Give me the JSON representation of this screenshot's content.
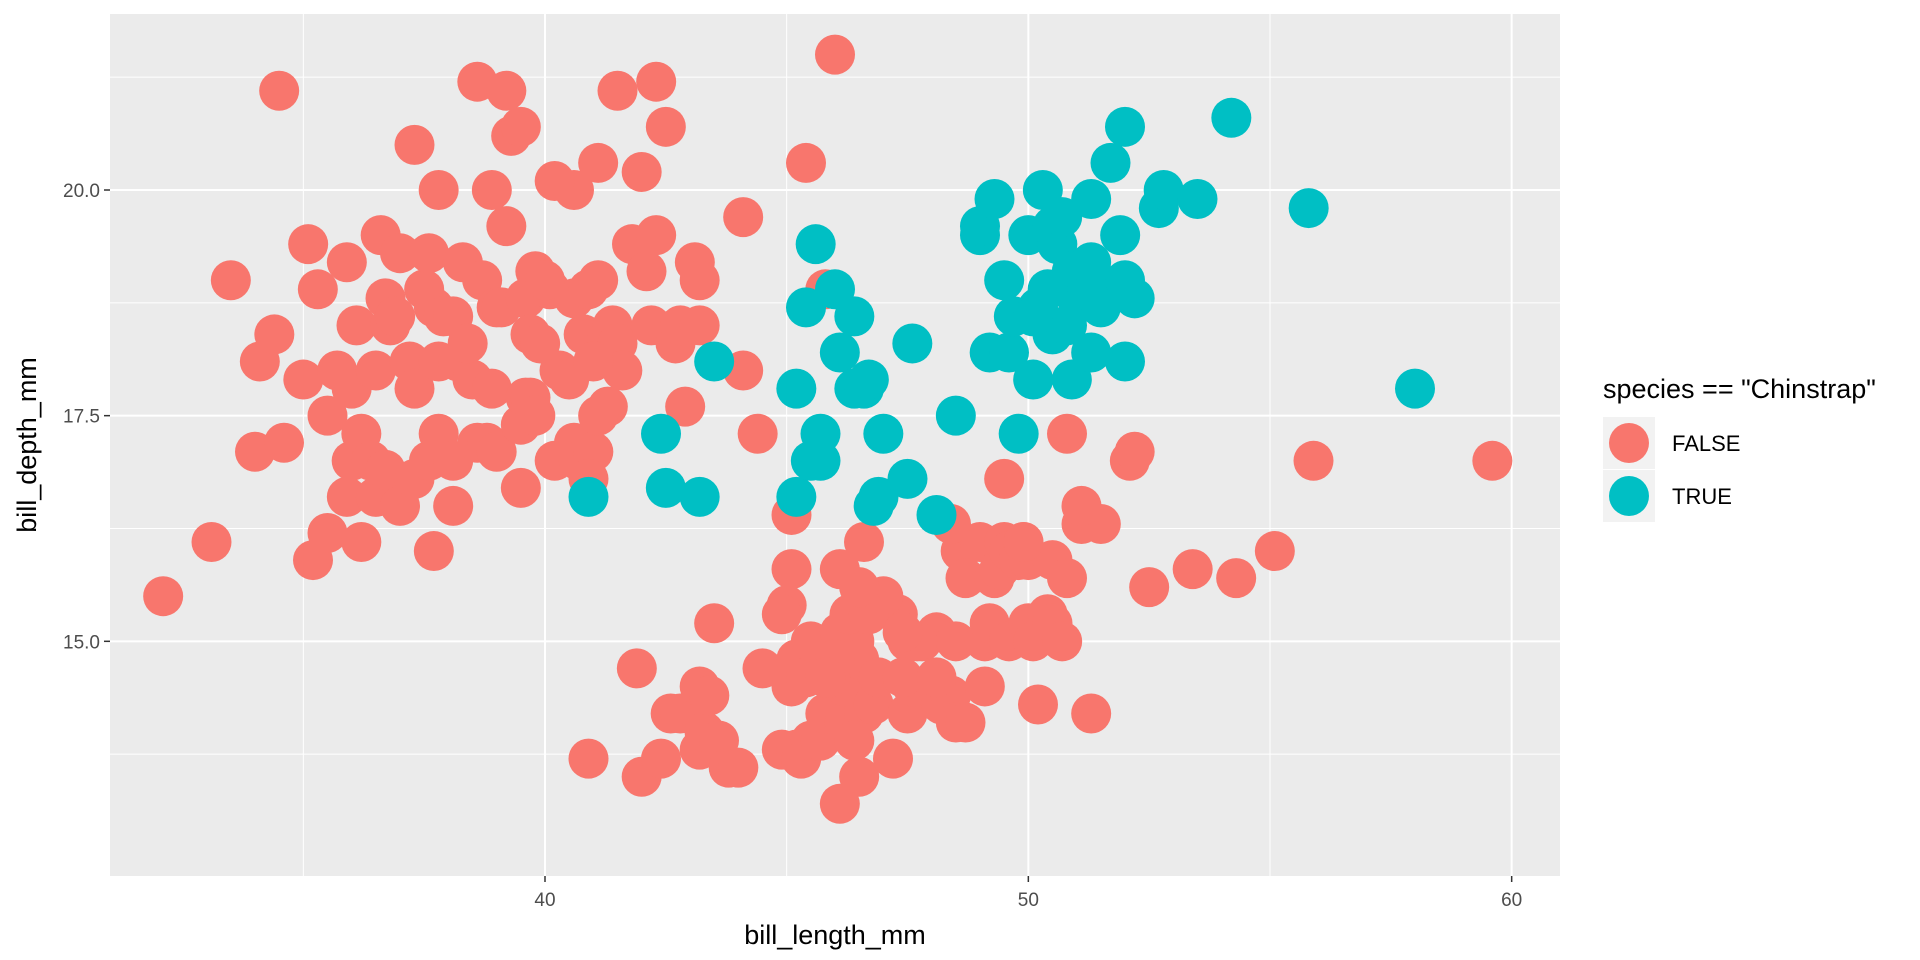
{
  "chart_data": {
    "type": "scatter",
    "xlabel": "bill_length_mm",
    "ylabel": "bill_depth_mm",
    "xlim": [
      31.0,
      61.0
    ],
    "ylim": [
      12.4,
      21.95
    ],
    "x_ticks": [
      40,
      50,
      60
    ],
    "y_ticks": [
      15.0,
      17.5,
      20.0
    ],
    "x_tick_labels": [
      "40",
      "50",
      "60"
    ],
    "y_tick_labels": [
      "15.0",
      "17.5",
      "20.0"
    ],
    "grid": true,
    "background": "#EBEBEB",
    "legend": {
      "title": "species == \"Chinstrap\"",
      "position": "right",
      "entries": [
        {
          "label": "FALSE",
          "color": "#F8766D"
        },
        {
          "label": "TRUE",
          "color": "#00BFC4"
        }
      ]
    },
    "series": [
      {
        "name": "FALSE",
        "color": "#F8766D",
        "points": [
          [
            32.1,
            15.5
          ],
          [
            33.1,
            16.1
          ],
          [
            33.5,
            19.0
          ],
          [
            34.0,
            17.1
          ],
          [
            34.1,
            18.1
          ],
          [
            34.4,
            18.4
          ],
          [
            34.5,
            21.1
          ],
          [
            34.6,
            17.2
          ],
          [
            35.0,
            17.9
          ],
          [
            35.1,
            19.4
          ],
          [
            35.2,
            15.9
          ],
          [
            35.3,
            18.9
          ],
          [
            35.5,
            16.2
          ],
          [
            35.5,
            17.5
          ],
          [
            35.7,
            18.0
          ],
          [
            35.9,
            19.2
          ],
          [
            35.9,
            16.6
          ],
          [
            36.0,
            17.0
          ],
          [
            36.0,
            17.8
          ],
          [
            36.1,
            18.5
          ],
          [
            36.2,
            16.1
          ],
          [
            36.2,
            17.3
          ],
          [
            36.4,
            17.0
          ],
          [
            36.5,
            18.0
          ],
          [
            36.5,
            16.6
          ],
          [
            36.6,
            19.5
          ],
          [
            36.7,
            18.8
          ],
          [
            36.7,
            16.9
          ],
          [
            36.8,
            18.5
          ],
          [
            36.9,
            18.6
          ],
          [
            37.0,
            16.5
          ],
          [
            37.0,
            19.3
          ],
          [
            37.2,
            18.1
          ],
          [
            37.3,
            16.8
          ],
          [
            37.3,
            17.8
          ],
          [
            37.5,
            18.9
          ],
          [
            37.6,
            19.3
          ],
          [
            37.6,
            17.0
          ],
          [
            37.7,
            16.0
          ],
          [
            37.7,
            18.7
          ],
          [
            37.8,
            17.3
          ],
          [
            37.8,
            18.1
          ],
          [
            37.8,
            20.0
          ],
          [
            37.9,
            18.6
          ],
          [
            38.1,
            17.0
          ],
          [
            38.1,
            18.6
          ],
          [
            38.1,
            16.5
          ],
          [
            38.2,
            18.1
          ],
          [
            38.3,
            19.2
          ],
          [
            38.5,
            17.9
          ],
          [
            38.6,
            17.2
          ],
          [
            38.6,
            21.2
          ],
          [
            38.7,
            19.0
          ],
          [
            38.8,
            17.2
          ],
          [
            38.9,
            17.8
          ],
          [
            39.0,
            17.1
          ],
          [
            39.0,
            18.7
          ],
          [
            39.1,
            18.7
          ],
          [
            39.2,
            19.6
          ],
          [
            39.2,
            21.1
          ],
          [
            39.3,
            20.6
          ],
          [
            39.5,
            17.4
          ],
          [
            39.5,
            16.7
          ],
          [
            39.6,
            17.7
          ],
          [
            39.6,
            18.8
          ],
          [
            39.7,
            18.4
          ],
          [
            39.7,
            17.7
          ],
          [
            39.8,
            19.1
          ],
          [
            39.8,
            17.5
          ],
          [
            40.1,
            18.9
          ],
          [
            40.2,
            17.0
          ],
          [
            40.3,
            18.0
          ],
          [
            40.5,
            17.9
          ],
          [
            40.6,
            18.8
          ],
          [
            40.6,
            17.2
          ],
          [
            40.7,
            17.0
          ],
          [
            40.8,
            18.4
          ],
          [
            40.9,
            18.9
          ],
          [
            41.0,
            17.1
          ],
          [
            41.1,
            18.2
          ],
          [
            41.1,
            19.0
          ],
          [
            41.3,
            17.6
          ],
          [
            41.4,
            18.5
          ],
          [
            41.5,
            18.3
          ],
          [
            41.6,
            18.0
          ],
          [
            41.8,
            19.4
          ],
          [
            42.0,
            20.2
          ],
          [
            42.1,
            19.1
          ],
          [
            42.2,
            18.5
          ],
          [
            42.3,
            21.2
          ],
          [
            42.5,
            20.7
          ],
          [
            42.7,
            18.3
          ],
          [
            42.8,
            18.5
          ],
          [
            43.1,
            19.2
          ],
          [
            43.2,
            19.0
          ],
          [
            43.2,
            18.5
          ],
          [
            44.1,
            19.7
          ],
          [
            44.1,
            18.0
          ],
          [
            46.0,
            21.5
          ],
          [
            45.4,
            20.3
          ],
          [
            45.8,
            18.9
          ],
          [
            40.9,
            16.8
          ],
          [
            41.1,
            17.5
          ],
          [
            41.5,
            21.1
          ],
          [
            40.6,
            20.0
          ],
          [
            38.9,
            20.0
          ],
          [
            37.3,
            20.5
          ],
          [
            41.1,
            20.3
          ],
          [
            40.2,
            20.1
          ],
          [
            39.5,
            20.7
          ],
          [
            42.9,
            17.6
          ],
          [
            44.4,
            17.3
          ],
          [
            41.0,
            18.1
          ],
          [
            39.9,
            18.3
          ],
          [
            40.0,
            19.0
          ],
          [
            38.4,
            18.3
          ],
          [
            42.3,
            19.5
          ],
          [
            40.9,
            13.7
          ],
          [
            41.9,
            14.7
          ],
          [
            42.0,
            13.5
          ],
          [
            42.4,
            13.7
          ],
          [
            42.6,
            14.2
          ],
          [
            42.8,
            14.2
          ],
          [
            43.2,
            13.8
          ],
          [
            43.2,
            14.5
          ],
          [
            43.3,
            14.0
          ],
          [
            43.4,
            14.4
          ],
          [
            43.5,
            15.2
          ],
          [
            43.6,
            13.9
          ],
          [
            43.8,
            13.6
          ],
          [
            44.0,
            13.6
          ],
          [
            44.5,
            14.7
          ],
          [
            44.9,
            13.8
          ],
          [
            45.1,
            14.5
          ],
          [
            45.2,
            13.8
          ],
          [
            45.2,
            14.8
          ],
          [
            45.3,
            13.7
          ],
          [
            45.4,
            14.6
          ],
          [
            45.5,
            13.9
          ],
          [
            45.5,
            15.0
          ],
          [
            45.7,
            13.9
          ],
          [
            45.8,
            14.2
          ],
          [
            46.1,
            13.2
          ],
          [
            46.1,
            15.1
          ],
          [
            46.2,
            14.1
          ],
          [
            46.2,
            14.5
          ],
          [
            46.4,
            15.0
          ],
          [
            46.5,
            13.5
          ],
          [
            46.5,
            14.8
          ],
          [
            46.6,
            14.2
          ],
          [
            46.8,
            14.3
          ],
          [
            46.8,
            15.4
          ],
          [
            46.9,
            14.6
          ],
          [
            47.2,
            13.7
          ],
          [
            47.3,
            15.3
          ],
          [
            47.5,
            14.2
          ],
          [
            47.5,
            15.0
          ],
          [
            47.6,
            14.5
          ],
          [
            47.8,
            15.0
          ],
          [
            48.1,
            15.1
          ],
          [
            48.2,
            14.3
          ],
          [
            48.4,
            14.4
          ],
          [
            48.5,
            14.1
          ],
          [
            48.5,
            15.0
          ],
          [
            48.6,
            16.0
          ],
          [
            48.7,
            14.1
          ],
          [
            48.7,
            15.7
          ],
          [
            49.0,
            16.1
          ],
          [
            49.1,
            14.5
          ],
          [
            49.1,
            15.0
          ],
          [
            49.2,
            15.2
          ],
          [
            49.3,
            15.7
          ],
          [
            49.4,
            15.8
          ],
          [
            49.5,
            16.1
          ],
          [
            49.6,
            15.0
          ],
          [
            49.6,
            16.0
          ],
          [
            49.8,
            15.9
          ],
          [
            49.9,
            16.1
          ],
          [
            50.0,
            15.2
          ],
          [
            50.0,
            15.9
          ],
          [
            50.1,
            15.0
          ],
          [
            50.2,
            14.3
          ],
          [
            50.4,
            15.3
          ],
          [
            50.5,
            15.9
          ],
          [
            50.5,
            15.2
          ],
          [
            50.7,
            15.0
          ],
          [
            50.8,
            15.7
          ],
          [
            51.1,
            16.3
          ],
          [
            51.3,
            14.2
          ],
          [
            51.5,
            16.3
          ],
          [
            52.1,
            17.0
          ],
          [
            52.2,
            17.1
          ],
          [
            52.5,
            15.6
          ],
          [
            53.4,
            15.8
          ],
          [
            54.3,
            15.7
          ],
          [
            55.1,
            16.0
          ],
          [
            55.9,
            17.0
          ],
          [
            59.6,
            17.0
          ],
          [
            45.1,
            16.4
          ],
          [
            45.1,
            15.8
          ],
          [
            45.0,
            15.4
          ],
          [
            46.1,
            15.8
          ],
          [
            46.3,
            15.3
          ],
          [
            46.6,
            16.1
          ],
          [
            47.0,
            15.5
          ],
          [
            45.9,
            14.6
          ],
          [
            46.7,
            15.3
          ],
          [
            47.4,
            14.6
          ],
          [
            47.7,
            15.0
          ],
          [
            48.4,
            16.3
          ],
          [
            49.5,
            16.8
          ],
          [
            50.8,
            17.3
          ],
          [
            51.1,
            16.5
          ],
          [
            44.9,
            15.3
          ],
          [
            46.0,
            14.8
          ],
          [
            45.8,
            14.6
          ],
          [
            47.4,
            15.1
          ],
          [
            48.1,
            14.6
          ],
          [
            49.9,
            16.1
          ],
          [
            46.5,
            15.6
          ],
          [
            46.4,
            13.9
          ]
        ]
      },
      {
        "name": "TRUE",
        "color": "#00BFC4",
        "points": [
          [
            40.9,
            16.6
          ],
          [
            42.4,
            17.3
          ],
          [
            42.5,
            16.7
          ],
          [
            43.2,
            16.6
          ],
          [
            43.5,
            18.1
          ],
          [
            45.2,
            17.8
          ],
          [
            45.2,
            16.6
          ],
          [
            45.4,
            18.7
          ],
          [
            45.5,
            17.0
          ],
          [
            45.6,
            19.4
          ],
          [
            45.7,
            17.3
          ],
          [
            45.7,
            17.0
          ],
          [
            46.0,
            18.9
          ],
          [
            46.1,
            18.2
          ],
          [
            46.4,
            18.6
          ],
          [
            46.4,
            17.8
          ],
          [
            46.6,
            17.8
          ],
          [
            46.7,
            17.9
          ],
          [
            46.8,
            16.5
          ],
          [
            46.9,
            16.6
          ],
          [
            47.0,
            17.3
          ],
          [
            47.5,
            16.8
          ],
          [
            47.6,
            18.3
          ],
          [
            48.1,
            16.4
          ],
          [
            48.5,
            17.5
          ],
          [
            49.0,
            19.5
          ],
          [
            49.0,
            19.6
          ],
          [
            49.2,
            18.2
          ],
          [
            49.3,
            19.9
          ],
          [
            49.5,
            19.0
          ],
          [
            49.6,
            18.2
          ],
          [
            49.7,
            18.6
          ],
          [
            49.8,
            17.3
          ],
          [
            50.0,
            19.5
          ],
          [
            50.1,
            17.9
          ],
          [
            50.2,
            18.7
          ],
          [
            50.3,
            20.0
          ],
          [
            50.5,
            18.4
          ],
          [
            50.5,
            19.6
          ],
          [
            50.6,
            19.4
          ],
          [
            50.7,
            19.7
          ],
          [
            50.8,
            18.5
          ],
          [
            50.9,
            17.9
          ],
          [
            50.9,
            19.1
          ],
          [
            51.0,
            18.8
          ],
          [
            51.3,
            18.2
          ],
          [
            51.3,
            19.2
          ],
          [
            51.3,
            19.9
          ],
          [
            51.4,
            19.0
          ],
          [
            51.5,
            18.7
          ],
          [
            51.7,
            20.3
          ],
          [
            51.9,
            19.5
          ],
          [
            52.0,
            18.1
          ],
          [
            52.0,
            19.0
          ],
          [
            52.0,
            20.7
          ],
          [
            52.2,
            18.8
          ],
          [
            52.7,
            19.8
          ],
          [
            52.8,
            20.0
          ],
          [
            53.5,
            19.9
          ],
          [
            54.2,
            20.8
          ],
          [
            55.8,
            19.8
          ],
          [
            58.0,
            17.8
          ],
          [
            50.1,
            18.6
          ],
          [
            50.4,
            18.9
          ]
        ]
      }
    ]
  }
}
